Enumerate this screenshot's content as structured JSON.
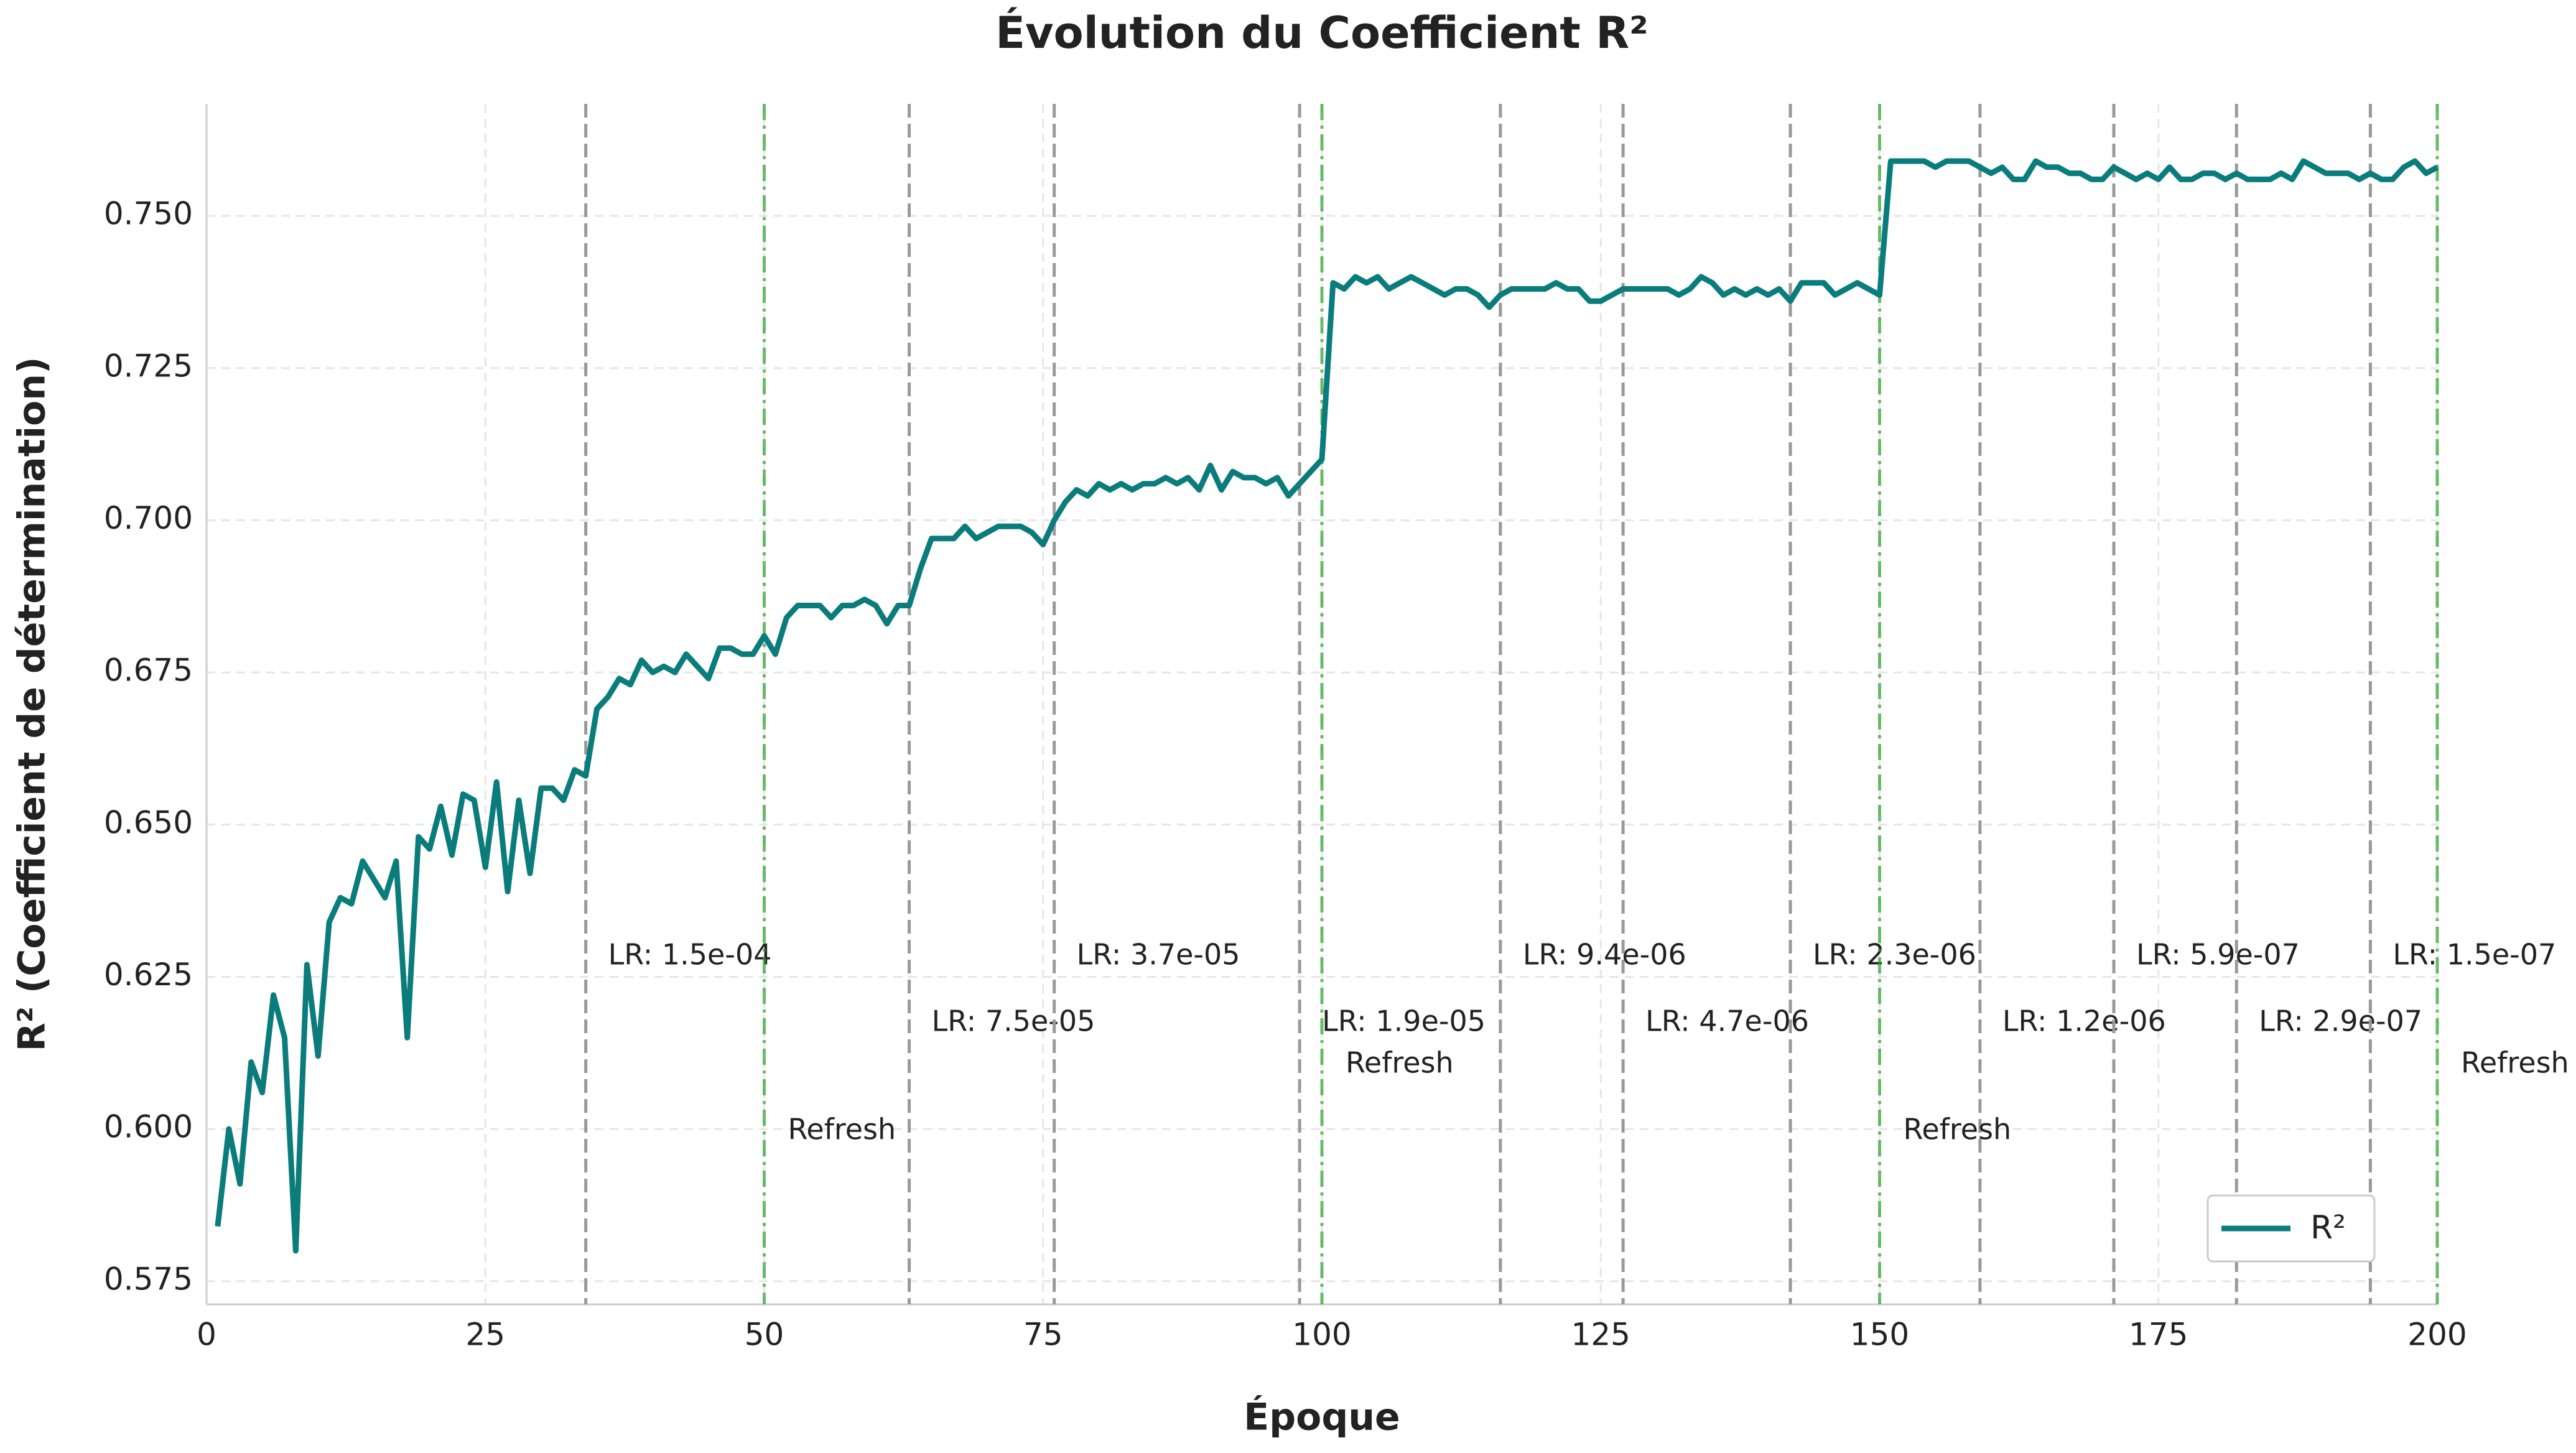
{
  "chart_data": {
    "type": "line",
    "title": "Évolution du Coefficient R²",
    "xlabel": "Époque",
    "ylabel": "R² (Coefficient de détermination)",
    "x": [
      1,
      2,
      3,
      4,
      5,
      6,
      7,
      8,
      9,
      10,
      11,
      12,
      13,
      14,
      15,
      16,
      17,
      18,
      19,
      20,
      21,
      22,
      23,
      24,
      25,
      26,
      27,
      28,
      29,
      30,
      31,
      32,
      33,
      34,
      35,
      36,
      37,
      38,
      39,
      40,
      41,
      42,
      43,
      44,
      45,
      46,
      47,
      48,
      49,
      50,
      51,
      52,
      53,
      54,
      55,
      56,
      57,
      58,
      59,
      60,
      61,
      62,
      63,
      64,
      65,
      66,
      67,
      68,
      69,
      70,
      71,
      72,
      73,
      74,
      75,
      76,
      77,
      78,
      79,
      80,
      81,
      82,
      83,
      84,
      85,
      86,
      87,
      88,
      89,
      90,
      91,
      92,
      93,
      94,
      95,
      96,
      97,
      98,
      99,
      100,
      101,
      102,
      103,
      104,
      105,
      106,
      107,
      108,
      109,
      110,
      111,
      112,
      113,
      114,
      115,
      116,
      117,
      118,
      119,
      120,
      121,
      122,
      123,
      124,
      125,
      126,
      127,
      128,
      129,
      130,
      131,
      132,
      133,
      134,
      135,
      136,
      137,
      138,
      139,
      140,
      141,
      142,
      143,
      144,
      145,
      146,
      147,
      148,
      149,
      150,
      151,
      152,
      153,
      154,
      155,
      156,
      157,
      158,
      159,
      160,
      161,
      162,
      163,
      164,
      165,
      166,
      167,
      168,
      169,
      170,
      171,
      172,
      173,
      174,
      175,
      176,
      177,
      178,
      179,
      180,
      181,
      182,
      183,
      184,
      185,
      186,
      187,
      188,
      189,
      190,
      191,
      192,
      193,
      194,
      195,
      196,
      197,
      198,
      199,
      200
    ],
    "series": [
      {
        "name": "R²",
        "color": "#0a7c7c",
        "values": [
          0.584,
          0.6,
          0.591,
          0.611,
          0.606,
          0.622,
          0.615,
          0.58,
          0.627,
          0.612,
          0.634,
          0.638,
          0.637,
          0.644,
          0.641,
          0.638,
          0.644,
          0.615,
          0.648,
          0.646,
          0.653,
          0.645,
          0.655,
          0.654,
          0.643,
          0.657,
          0.639,
          0.654,
          0.642,
          0.656,
          0.656,
          0.654,
          0.659,
          0.658,
          0.669,
          0.671,
          0.674,
          0.673,
          0.677,
          0.675,
          0.676,
          0.675,
          0.678,
          0.676,
          0.674,
          0.679,
          0.679,
          0.678,
          0.678,
          0.681,
          0.678,
          0.684,
          0.686,
          0.686,
          0.686,
          0.684,
          0.686,
          0.686,
          0.687,
          0.686,
          0.683,
          0.686,
          0.686,
          0.692,
          0.697,
          0.697,
          0.697,
          0.699,
          0.697,
          0.698,
          0.699,
          0.699,
          0.699,
          0.698,
          0.696,
          0.7,
          0.703,
          0.705,
          0.704,
          0.706,
          0.705,
          0.706,
          0.705,
          0.706,
          0.706,
          0.707,
          0.706,
          0.707,
          0.705,
          0.709,
          0.705,
          0.708,
          0.707,
          0.707,
          0.706,
          0.707,
          0.704,
          0.706,
          0.708,
          0.71,
          0.739,
          0.738,
          0.74,
          0.739,
          0.74,
          0.738,
          0.739,
          0.74,
          0.739,
          0.738,
          0.737,
          0.738,
          0.738,
          0.737,
          0.735,
          0.737,
          0.738,
          0.738,
          0.738,
          0.738,
          0.739,
          0.738,
          0.738,
          0.736,
          0.736,
          0.737,
          0.738,
          0.738,
          0.738,
          0.738,
          0.738,
          0.737,
          0.738,
          0.74,
          0.739,
          0.737,
          0.738,
          0.737,
          0.738,
          0.737,
          0.738,
          0.736,
          0.739,
          0.739,
          0.739,
          0.737,
          0.738,
          0.739,
          0.738,
          0.737,
          0.759,
          0.759,
          0.759,
          0.759,
          0.758,
          0.759,
          0.759,
          0.759,
          0.758,
          0.757,
          0.758,
          0.756,
          0.756,
          0.759,
          0.758,
          0.758,
          0.757,
          0.757,
          0.756,
          0.756,
          0.758,
          0.757,
          0.756,
          0.757,
          0.756,
          0.758,
          0.756,
          0.756,
          0.757,
          0.757,
          0.756,
          0.757,
          0.756,
          0.756,
          0.756,
          0.757,
          0.756,
          0.759,
          0.758,
          0.757,
          0.757,
          0.757,
          0.756,
          0.757,
          0.756,
          0.756,
          0.758,
          0.759,
          0.757,
          0.758
        ]
      }
    ],
    "xlim": [
      0,
      200
    ],
    "xticks": [
      0,
      25,
      50,
      75,
      100,
      125,
      150,
      175,
      200
    ],
    "ylim": [
      0.5712,
      0.7684
    ],
    "yticks": [
      0.575,
      {
        "value": 0.6,
        "label": "0.600"
      },
      0.625,
      {
        "value": 0.65,
        "label": "0.650"
      },
      0.675,
      {
        "value": 0.7,
        "label": "0.700"
      },
      0.725,
      {
        "value": 0.75,
        "label": "0.750"
      }
    ],
    "grid": true,
    "legend": "lower right",
    "lr_changes": [
      {
        "epoch": 34,
        "label": "LR: 1.5e-04"
      },
      {
        "epoch": 63,
        "label": "LR: 7.5e-05"
      },
      {
        "epoch": 76,
        "label": "LR: 3.7e-05"
      },
      {
        "epoch": 98,
        "label": "LR: 1.9e-05"
      },
      {
        "epoch": 116,
        "label": "LR: 9.4e-06"
      },
      {
        "epoch": 127,
        "label": "LR: 4.7e-06"
      },
      {
        "epoch": 142,
        "label": "LR: 2.3e-06"
      },
      {
        "epoch": 159,
        "label": "LR: 1.2e-06"
      },
      {
        "epoch": 171,
        "label": "LR: 5.9e-07"
      },
      {
        "epoch": 182,
        "label": "LR: 2.9e-07"
      },
      {
        "epoch": 194,
        "label": "LR: 1.5e-07"
      }
    ],
    "lr_color": "#999999",
    "refreshes": [
      {
        "epoch": 50,
        "label": "Refresh"
      },
      {
        "epoch": 100,
        "label": "Refresh"
      },
      {
        "epoch": 150,
        "label": "Refresh"
      },
      {
        "epoch": 200,
        "label": "Refresh"
      }
    ],
    "refresh_color": "#2ca02c"
  }
}
